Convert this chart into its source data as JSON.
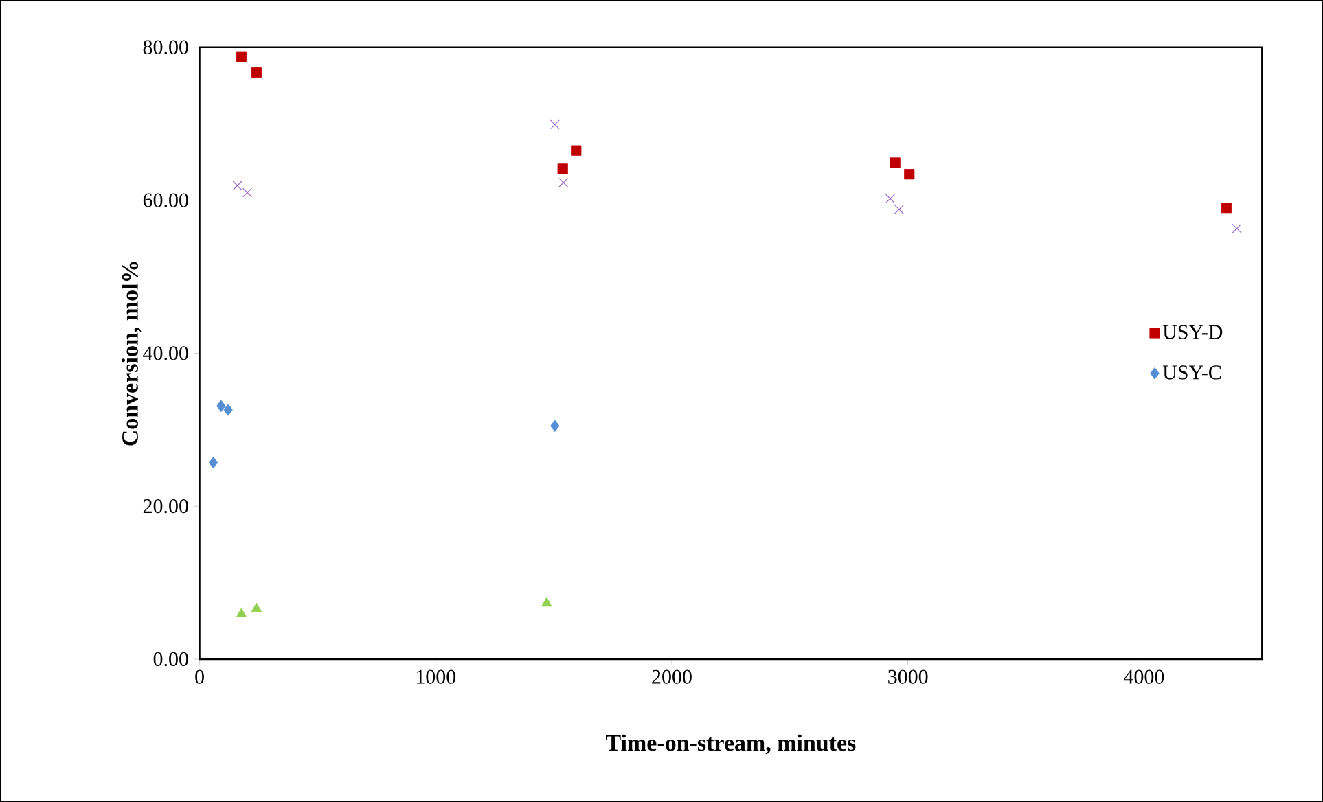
{
  "chart_data": {
    "type": "scatter",
    "xlabel": "Time-on-stream, minutes",
    "ylabel": "Conversion, mol%",
    "xlim": [
      0,
      4500
    ],
    "xticks": [
      0,
      1000,
      2000,
      3000,
      4000
    ],
    "ylim": [
      0,
      80
    ],
    "yticks": [
      {
        "value": 0,
        "label": "0.00"
      },
      {
        "value": 20,
        "label": "20.00"
      },
      {
        "value": 40,
        "label": "40.00"
      },
      {
        "value": 60,
        "label": "60.00"
      },
      {
        "value": 80,
        "label": "80.00"
      }
    ],
    "grid": false,
    "legend": "right",
    "series": [
      {
        "name": "USY-D",
        "color": "#c00000",
        "marker": "square",
        "x": [
          177,
          241,
          1538,
          1595,
          2946,
          3006,
          4349
        ],
        "values": [
          78.7,
          76.7,
          64.1,
          66.5,
          64.9,
          63.4,
          59.0
        ]
      },
      {
        "color": "#92d050",
        "marker": "triangle",
        "x": [
          177,
          241,
          1470
        ],
        "values": [
          5.9,
          6.6,
          7.3
        ]
      },
      {
        "color": "#9966cc",
        "marker": "cross",
        "x": [
          160,
          202,
          1505,
          1541,
          2925,
          2963,
          4393
        ],
        "values": [
          61.9,
          61.0,
          69.9,
          62.3,
          60.2,
          58.8,
          56.3
        ]
      },
      {
        "name": "USY-C",
        "color": "#558ed5",
        "marker": "diamond",
        "x": [
          58,
          91,
          121,
          1505
        ],
        "values": [
          25.7,
          33.1,
          32.6,
          30.5
        ]
      }
    ]
  }
}
